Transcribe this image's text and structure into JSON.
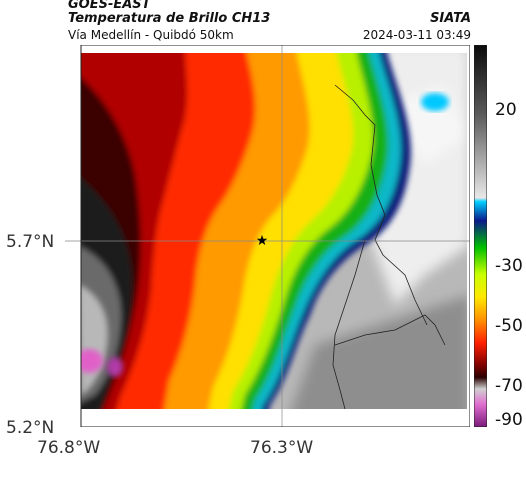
{
  "header": {
    "satellite": "GOES-EAST",
    "product": "Temperatura de Brillo CH13",
    "subtitle": "Vía Medellín - Quibdó 50km",
    "organization": "SIATA",
    "datetime": "2024-03-11 03:49"
  },
  "map": {
    "y_ticks": [
      "5.7°N",
      "5.2°N"
    ],
    "x_ticks": [
      "76.8°W",
      "76.3°W"
    ],
    "marker": "star",
    "gridlines": true
  },
  "colorbar": {
    "ticks": [
      "20",
      "-30",
      "-50",
      "-70",
      "-90"
    ],
    "colors": [
      "#151515",
      "#6a6a6a",
      "#d9d9d9",
      "#00c8ff",
      "#0a1a8a",
      "#00b000",
      "#c8ff00",
      "#ffe800",
      "#ff9800",
      "#ff2a00",
      "#9a0000",
      "#3a0000",
      "#cfcfcf",
      "#e060c8",
      "#8a1a8a"
    ]
  },
  "colors": {
    "cold_cloud": "#1a1a1a",
    "deep_convection": "#d0101a",
    "warm_ground": "#9a9a9a",
    "overshoot": "#e060c8"
  }
}
